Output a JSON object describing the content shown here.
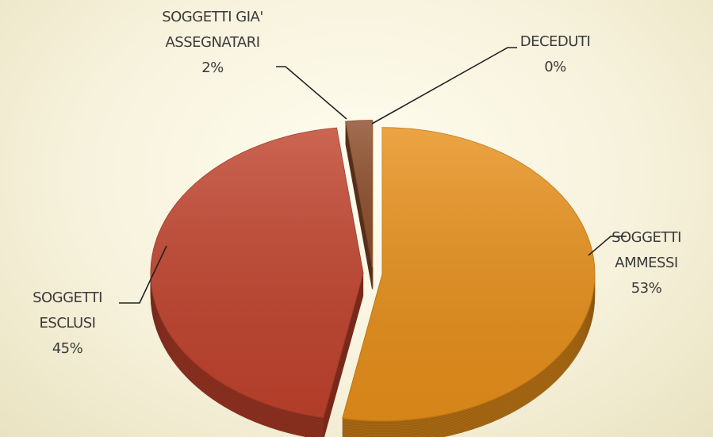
{
  "chart_data": {
    "type": "pie",
    "categories": [
      "SOGGETTI AMMESSI",
      "SOGGETTI ESCLUSI",
      "SOGGETTI GIA' ASSEGNATARI",
      "DECEDUTI"
    ],
    "values": [
      53,
      45,
      2,
      0
    ],
    "value_labels": [
      "53%",
      "45%",
      "2%",
      "0%"
    ],
    "colors": [
      "#e8901a",
      "#c1432d",
      "#8e4e2c",
      "#d2a468"
    ]
  }
}
